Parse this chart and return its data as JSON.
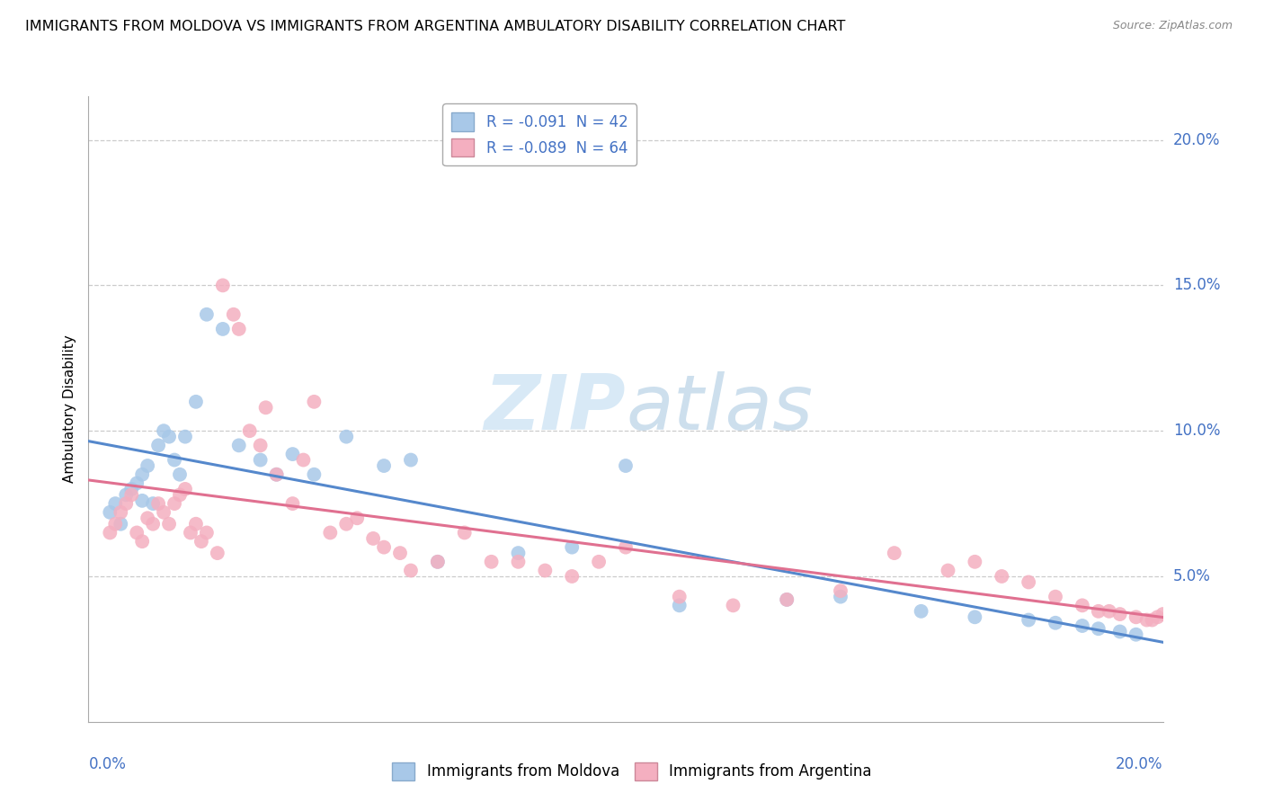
{
  "title": "IMMIGRANTS FROM MOLDOVA VS IMMIGRANTS FROM ARGENTINA AMBULATORY DISABILITY CORRELATION CHART",
  "source": "Source: ZipAtlas.com",
  "ylabel": "Ambulatory Disability",
  "legend_moldova": "R = -0.091  N = 42",
  "legend_argentina": "R = -0.089  N = 64",
  "legend_label_moldova": "Immigrants from Moldova",
  "legend_label_argentina": "Immigrants from Argentina",
  "xlim": [
    0.0,
    0.2
  ],
  "ylim": [
    0.0,
    0.215
  ],
  "yticks": [
    0.05,
    0.1,
    0.15,
    0.2
  ],
  "ytick_labels": [
    "5.0%",
    "10.0%",
    "15.0%",
    "20.0%"
  ],
  "color_moldova": "#a8c8e8",
  "color_argentina": "#f4afc0",
  "line_color_moldova": "#5588cc",
  "line_color_argentina": "#e07090",
  "moldova_x": [
    0.004,
    0.005,
    0.006,
    0.007,
    0.008,
    0.009,
    0.01,
    0.01,
    0.011,
    0.012,
    0.013,
    0.014,
    0.015,
    0.016,
    0.017,
    0.018,
    0.02,
    0.022,
    0.025,
    0.028,
    0.032,
    0.035,
    0.038,
    0.042,
    0.048,
    0.055,
    0.06,
    0.065,
    0.08,
    0.09,
    0.1,
    0.11,
    0.13,
    0.14,
    0.155,
    0.165,
    0.175,
    0.18,
    0.185,
    0.188,
    0.192,
    0.195
  ],
  "moldova_y": [
    0.072,
    0.075,
    0.068,
    0.078,
    0.08,
    0.082,
    0.085,
    0.076,
    0.088,
    0.075,
    0.095,
    0.1,
    0.098,
    0.09,
    0.085,
    0.098,
    0.11,
    0.14,
    0.135,
    0.095,
    0.09,
    0.085,
    0.092,
    0.085,
    0.098,
    0.088,
    0.09,
    0.055,
    0.058,
    0.06,
    0.088,
    0.04,
    0.042,
    0.043,
    0.038,
    0.036,
    0.035,
    0.034,
    0.033,
    0.032,
    0.031,
    0.03
  ],
  "argentina_x": [
    0.004,
    0.005,
    0.006,
    0.007,
    0.008,
    0.009,
    0.01,
    0.011,
    0.012,
    0.013,
    0.014,
    0.015,
    0.016,
    0.017,
    0.018,
    0.019,
    0.02,
    0.021,
    0.022,
    0.024,
    0.025,
    0.027,
    0.028,
    0.03,
    0.032,
    0.033,
    0.035,
    0.038,
    0.04,
    0.042,
    0.045,
    0.048,
    0.05,
    0.053,
    0.055,
    0.058,
    0.06,
    0.065,
    0.07,
    0.075,
    0.08,
    0.085,
    0.09,
    0.095,
    0.1,
    0.11,
    0.12,
    0.13,
    0.14,
    0.15,
    0.16,
    0.165,
    0.17,
    0.175,
    0.18,
    0.185,
    0.188,
    0.19,
    0.192,
    0.195,
    0.197,
    0.198,
    0.199,
    0.2
  ],
  "argentina_y": [
    0.065,
    0.068,
    0.072,
    0.075,
    0.078,
    0.065,
    0.062,
    0.07,
    0.068,
    0.075,
    0.072,
    0.068,
    0.075,
    0.078,
    0.08,
    0.065,
    0.068,
    0.062,
    0.065,
    0.058,
    0.15,
    0.14,
    0.135,
    0.1,
    0.095,
    0.108,
    0.085,
    0.075,
    0.09,
    0.11,
    0.065,
    0.068,
    0.07,
    0.063,
    0.06,
    0.058,
    0.052,
    0.055,
    0.065,
    0.055,
    0.055,
    0.052,
    0.05,
    0.055,
    0.06,
    0.043,
    0.04,
    0.042,
    0.045,
    0.058,
    0.052,
    0.055,
    0.05,
    0.048,
    0.043,
    0.04,
    0.038,
    0.038,
    0.037,
    0.036,
    0.035,
    0.035,
    0.036,
    0.037
  ],
  "watermark_zip": "ZIP",
  "watermark_atlas": "atlas",
  "background_color": "#ffffff",
  "grid_color": "#cccccc"
}
